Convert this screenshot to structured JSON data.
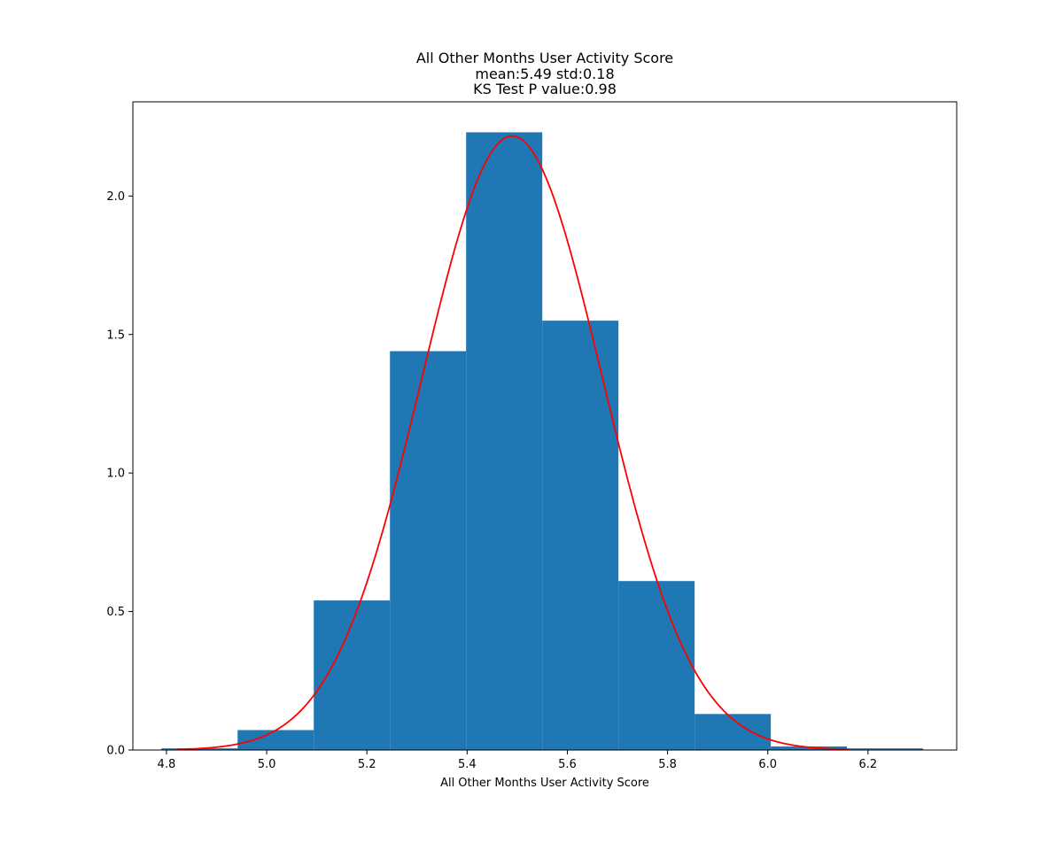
{
  "chart_data": {
    "type": "bar",
    "title_lines": [
      "All Other Months User Activity Score",
      "mean:5.49 std:0.18",
      "KS Test P value:0.98"
    ],
    "xlabel": "All Other Months User Activity Score",
    "ylabel": "",
    "xlim": [
      4.733,
      6.377
    ],
    "ylim": [
      0,
      2.34
    ],
    "x_ticks": [
      4.8,
      5.0,
      5.2,
      5.4,
      5.6,
      5.8,
      6.0,
      6.2
    ],
    "x_tick_labels": [
      "4.8",
      "5.0",
      "5.2",
      "5.4",
      "5.6",
      "5.8",
      "6.0",
      "6.2"
    ],
    "y_ticks": [
      0.0,
      0.5,
      1.0,
      1.5,
      2.0
    ],
    "y_tick_labels": [
      "0.0",
      "0.5",
      "1.0",
      "1.5",
      "2.0"
    ],
    "grid": false,
    "histogram": {
      "bin_edges": [
        4.79,
        4.942,
        5.094,
        5.246,
        5.398,
        5.55,
        5.702,
        5.854,
        6.006,
        6.158,
        6.31
      ],
      "values": [
        0.006,
        0.072,
        0.54,
        1.44,
        2.23,
        1.55,
        0.61,
        0.13,
        0.013,
        0.006
      ],
      "color": "#1f77b4"
    },
    "fit_curve": {
      "type": "normal_pdf",
      "mean": 5.49,
      "std": 0.18,
      "x_range": [
        4.82,
        6.16
      ],
      "color": "#ff0000"
    }
  }
}
